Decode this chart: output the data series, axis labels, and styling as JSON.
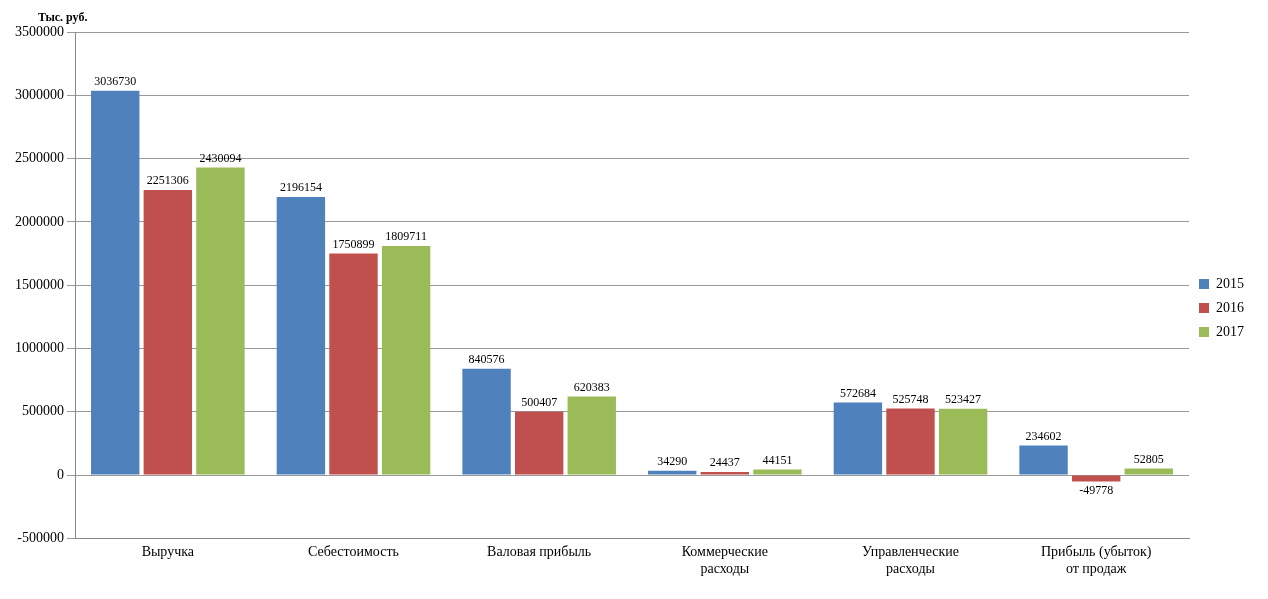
{
  "chart_data": {
    "type": "bar",
    "ylabel": "Тыс. руб.",
    "categories": [
      "Выручка",
      "Себестоимость",
      "Валовая прибыль",
      "Коммерческие расходы",
      "Управленческие расходы",
      "Прибыль (убыток) от продаж"
    ],
    "series": [
      {
        "name": "2015",
        "color": "#4f81bd",
        "values": [
          3036730,
          2196154,
          840576,
          34290,
          572684,
          234602
        ]
      },
      {
        "name": "2016",
        "color": "#c0504d",
        "values": [
          2251306,
          1750899,
          500407,
          24437,
          525748,
          -49778
        ]
      },
      {
        "name": "2017",
        "color": "#9bbb59",
        "values": [
          2430094,
          1809711,
          620383,
          44151,
          523427,
          52805
        ]
      }
    ],
    "ylim": [
      -500000,
      3500000
    ],
    "yticks": [
      -500000,
      0,
      500000,
      1000000,
      1500000,
      2000000,
      2500000,
      3000000,
      3500000
    ],
    "grid": "y",
    "legend": "right",
    "data_labels": true
  }
}
